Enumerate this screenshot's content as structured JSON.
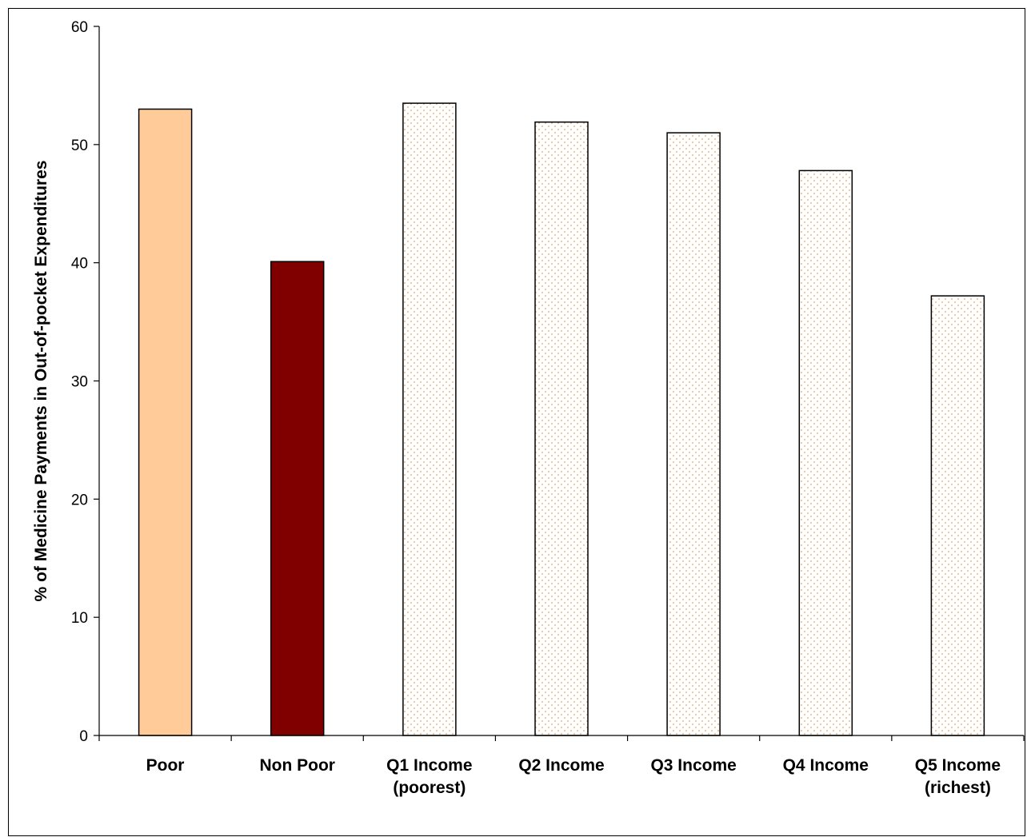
{
  "chart_data": {
    "type": "bar",
    "title": "",
    "xlabel": "",
    "ylabel": "% of Medicine Payments in Out-of-pocket Expenditures",
    "ylim": [
      0,
      60
    ],
    "yticks": [
      0,
      10,
      20,
      30,
      40,
      50,
      60
    ],
    "grid": false,
    "legend": "none",
    "categories": [
      [
        "Poor"
      ],
      [
        "Non Poor"
      ],
      [
        "Q1 Income",
        "(poorest)"
      ],
      [
        "Q2 Income"
      ],
      [
        "Q3 Income"
      ],
      [
        "Q4 Income"
      ],
      [
        "Q5 Income",
        "(richest)"
      ]
    ],
    "values": [
      53.0,
      40.1,
      53.5,
      51.9,
      51.0,
      47.8,
      37.2
    ],
    "bar_styles": [
      {
        "fill": "#FFCC99",
        "pattern": "solid"
      },
      {
        "fill": "#800000",
        "pattern": "solid"
      },
      {
        "fill": "#FFFFFF",
        "pattern": "dotted",
        "dot_color": "#E8A060"
      },
      {
        "fill": "#FFFFFF",
        "pattern": "dotted",
        "dot_color": "#E8A060"
      },
      {
        "fill": "#FFFFFF",
        "pattern": "dotted",
        "dot_color": "#E8A060"
      },
      {
        "fill": "#FFFFFF",
        "pattern": "dotted",
        "dot_color": "#E8A060"
      },
      {
        "fill": "#FFFFFF",
        "pattern": "dotted",
        "dot_color": "#E8A060"
      }
    ]
  }
}
